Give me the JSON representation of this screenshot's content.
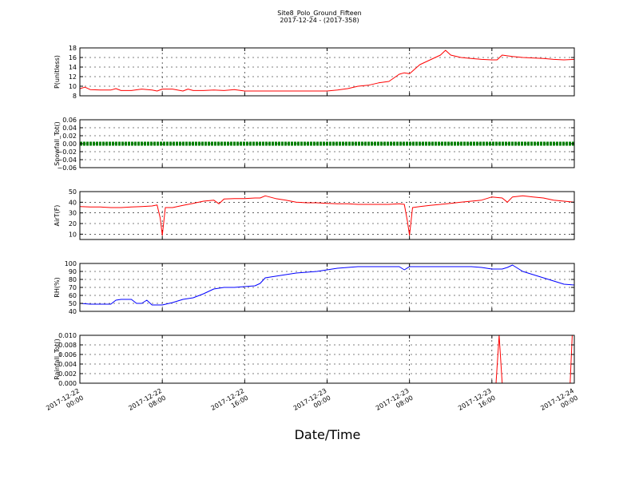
{
  "figure": {
    "title": "Site8_Polo_Ground_Fifteen",
    "subtitle": "2017-12-24 - (2017-358)",
    "xlabel": "Date/Time"
  },
  "chart_data": [
    {
      "type": "line",
      "ylabel": "P(unitless)",
      "ylim": [
        8,
        18
      ],
      "yticks": [
        "8",
        "10",
        "12",
        "14",
        "16",
        "18"
      ],
      "yticks_values": [
        8,
        10,
        12,
        14,
        16,
        18
      ],
      "xlim": [
        0,
        48
      ],
      "grid": true,
      "color": "#ff0000",
      "x": [
        0,
        0.5,
        1,
        2,
        3,
        3.5,
        4,
        5,
        6,
        7,
        7.5,
        8,
        9,
        10,
        10.5,
        11,
        12,
        13,
        14,
        15,
        16,
        17,
        18,
        19,
        20,
        21,
        22,
        23,
        24,
        25,
        26,
        27,
        28,
        29,
        30,
        31,
        31.5,
        32,
        33,
        34,
        35,
        35.5,
        36,
        37,
        38,
        39,
        40,
        40.5,
        41,
        42,
        43,
        44,
        45,
        46,
        47,
        48
      ],
      "y": [
        9.5,
        9.8,
        9.3,
        9.2,
        9.2,
        9.5,
        9.1,
        9.1,
        9.4,
        9.2,
        9.0,
        9.4,
        9.4,
        9.0,
        9.4,
        9.1,
        9.1,
        9.2,
        9.1,
        9.3,
        9.0,
        9.0,
        9.0,
        9.0,
        9.0,
        9.0,
        9.0,
        9.0,
        9.0,
        9.2,
        9.5,
        10.0,
        10.2,
        10.7,
        11.0,
        12.5,
        12.8,
        12.6,
        14.5,
        15.5,
        16.5,
        17.5,
        16.5,
        16.0,
        15.8,
        15.6,
        15.5,
        15.5,
        16.5,
        16.2,
        16.0,
        15.9,
        15.8,
        15.6,
        15.5,
        15.6
      ]
    },
    {
      "type": "scatter",
      "ylabel": "Snowfall_Tot()",
      "ylim": [
        -0.06,
        0.06
      ],
      "yticks": [
        "−0.06",
        "−0.04",
        "−0.02",
        "0.00",
        "0.02",
        "0.04",
        "0.06"
      ],
      "yticks_values": [
        -0.06,
        -0.04,
        -0.02,
        0.0,
        0.02,
        0.04,
        0.06
      ],
      "xlim": [
        0,
        48
      ],
      "grid": true,
      "color": "#008000",
      "x": [
        0,
        48
      ],
      "y": [
        0,
        0
      ]
    },
    {
      "type": "line",
      "ylabel": "AirT(F)",
      "ylim": [
        5,
        50
      ],
      "yticks": [
        "10",
        "20",
        "30",
        "40",
        "50"
      ],
      "yticks_values": [
        10,
        20,
        30,
        40,
        50
      ],
      "xlim": [
        0,
        48
      ],
      "grid": true,
      "color": "#ff0000",
      "x": [
        0,
        1,
        2,
        3,
        4,
        5,
        6,
        7,
        7.5,
        7.8,
        8.0,
        8.3,
        9,
        10,
        11,
        12,
        13,
        13.5,
        14,
        15,
        16,
        17,
        17.5,
        18,
        19,
        20,
        21,
        22,
        23,
        24,
        25,
        26,
        27,
        28,
        29,
        30,
        31,
        31.5,
        31.8,
        32.0,
        32.3,
        33,
        34,
        35,
        36,
        37,
        38,
        39,
        40,
        41,
        41.5,
        42,
        43,
        44,
        45,
        46,
        47,
        48
      ],
      "y": [
        36,
        35.5,
        35.5,
        35,
        35,
        35.5,
        36,
        36.5,
        37.5,
        25,
        9,
        35,
        35,
        37,
        39,
        41,
        42,
        38.5,
        43,
        43.5,
        43.5,
        44,
        44,
        46,
        43.5,
        42,
        40,
        39.5,
        39.5,
        39,
        38.5,
        38.5,
        38,
        38,
        38,
        38,
        38.5,
        38,
        22,
        9,
        35,
        36,
        37,
        38,
        39,
        40,
        41,
        42,
        45,
        44,
        40,
        45,
        46,
        45,
        44,
        42,
        41,
        40
      ]
    },
    {
      "type": "line",
      "ylabel": "RH(%)",
      "ylim": [
        40,
        100
      ],
      "yticks": [
        "40",
        "50",
        "60",
        "70",
        "80",
        "90",
        "100"
      ],
      "yticks_values": [
        40,
        50,
        60,
        70,
        80,
        90,
        100
      ],
      "xlim": [
        0,
        48
      ],
      "grid": true,
      "color": "#0000ff",
      "x": [
        0,
        1,
        2,
        3,
        3.5,
        4,
        5,
        5.5,
        6,
        6.5,
        7,
        7.5,
        8,
        9,
        10,
        11,
        12,
        13,
        14,
        15,
        16,
        17,
        17.5,
        18,
        19,
        20,
        21,
        22,
        23,
        24,
        25,
        26,
        27,
        28,
        29,
        30,
        31,
        31.5,
        32,
        33,
        34,
        35,
        36,
        37,
        38,
        39,
        40,
        41,
        41.5,
        42,
        43,
        44,
        45,
        46,
        47,
        48
      ],
      "y": [
        50,
        49,
        49,
        49,
        54,
        55,
        55,
        50,
        50,
        54,
        48,
        48,
        48,
        51,
        55,
        57,
        62,
        68,
        70,
        70,
        71,
        72,
        75,
        82,
        84,
        86,
        88,
        89,
        90,
        92,
        94,
        95,
        96,
        96,
        96,
        96,
        96,
        92,
        96,
        96,
        96,
        96,
        96,
        96,
        96,
        95,
        93,
        93,
        95,
        98,
        90,
        86,
        82,
        78,
        74,
        73
      ]
    },
    {
      "type": "line",
      "ylabel": "Rainfall_Tot()",
      "ylim": [
        0,
        0.01
      ],
      "yticks": [
        "0.000",
        "0.002",
        "0.004",
        "0.006",
        "0.008",
        "0.010"
      ],
      "yticks_values": [
        0,
        0.002,
        0.004,
        0.006,
        0.008,
        0.01
      ],
      "xlim": [
        0,
        48
      ],
      "grid": true,
      "color": "#ff0000",
      "x": [
        0,
        40.4,
        40.7,
        41.0,
        47.6,
        47.8,
        48
      ],
      "y": [
        0,
        0,
        0.01,
        0,
        0,
        0.01,
        0.01
      ]
    }
  ],
  "xaxis": {
    "tick_values": [
      0,
      8,
      16,
      24,
      32,
      40,
      48
    ],
    "tick_labels": [
      [
        "2017-12-22",
        "00:00"
      ],
      [
        "2017-12-22",
        "08:00"
      ],
      [
        "2017-12-22",
        "16:00"
      ],
      [
        "2017-12-23",
        "00:00"
      ],
      [
        "2017-12-23",
        "08:00"
      ],
      [
        "2017-12-23",
        "16:00"
      ],
      [
        "2017-12-24",
        "00:00"
      ]
    ]
  }
}
